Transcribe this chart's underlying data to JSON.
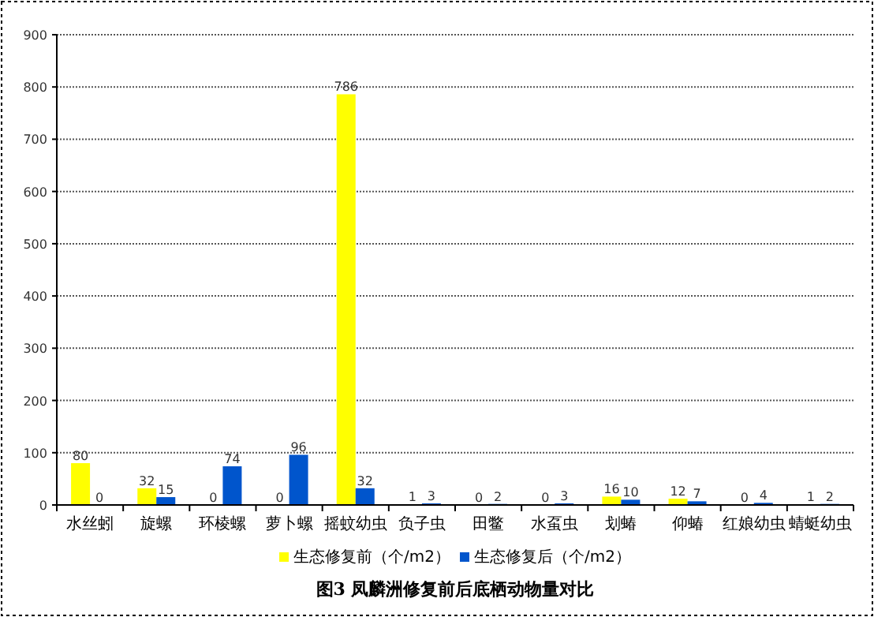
{
  "chart_data": {
    "type": "bar",
    "title": "图3 凤麟洲修复前后底栖动物量对比",
    "categories": [
      "水丝蚓",
      "旋螺",
      "环棱螺",
      "萝卜螺",
      "摇蚊幼虫",
      "负子虫",
      "田鳖",
      "水虿虫",
      "划蝽",
      "仰蝽",
      "红娘幼虫",
      "蜻蜓幼虫"
    ],
    "series": [
      {
        "name": "生态修复前（个/m2）",
        "color": "#ffff00",
        "values": [
          80,
          32,
          0,
          0,
          786,
          1,
          0,
          0,
          16,
          12,
          0,
          1
        ]
      },
      {
        "name": "生态修复后（个/m2）",
        "color": "#0055cc",
        "values": [
          0,
          15,
          74,
          96,
          32,
          3,
          2,
          3,
          10,
          7,
          4,
          2
        ]
      }
    ],
    "ylim": [
      0,
      900
    ],
    "yticks": [
      0,
      100,
      200,
      300,
      400,
      500,
      600,
      700,
      800,
      900
    ],
    "grid": "y",
    "legend": "bottom",
    "data_labels": true
  }
}
